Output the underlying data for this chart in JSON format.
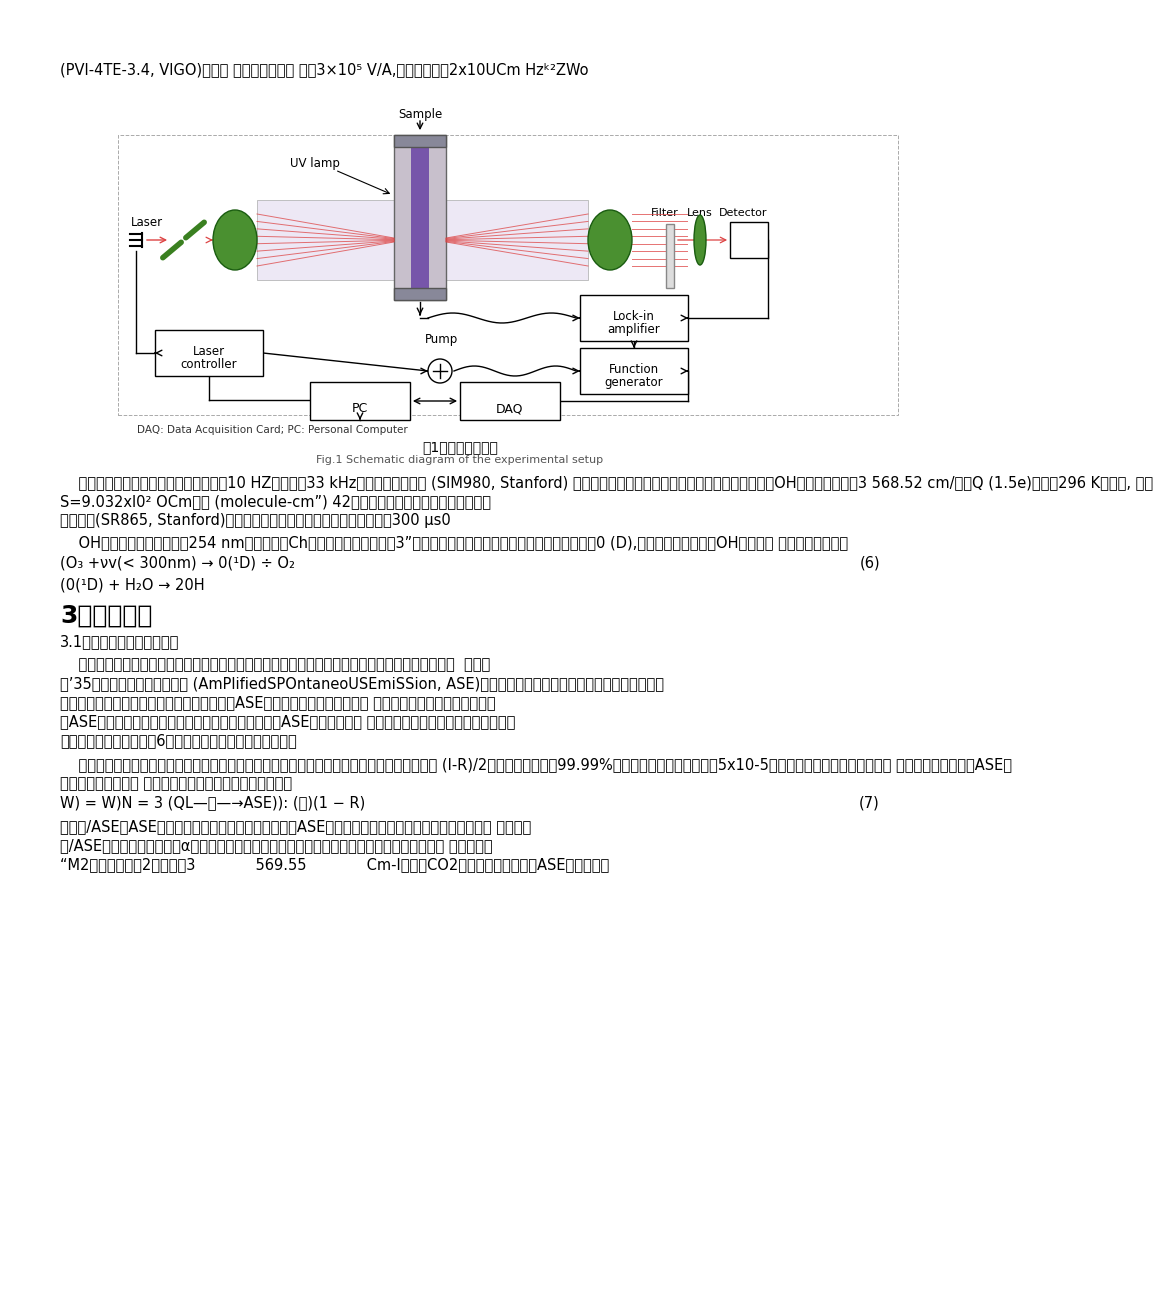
{
  "bg_color": "#ffffff",
  "line1": "(PVI-4TE-3.4, VIGO)接收， 探测器的跨阻增 益为3×10⁵ V/A,探测灵敏度为2x10UCm Hzᵏ²ZWo",
  "fig_caption_cn": "图1实验装置示意图",
  "fig_caption_en": "Fig.1 Schematic diagram of the experimental setup",
  "daq_note": "DAQ: Data Acquisition Card; PC: Personal Computer",
  "para1_lines": [
    "    使用波长调制离轴积分腔光谱探测时，10 HZ锯齿波和33 kHz正弦波通过加法器 (SIM980, Stanford) 叠加后送入激光控制器以扫描和调制激光注入电流，OH自由基选择位于3 568.52 cm/处的Q (1.5e)线（在296 K温度下, 线强",
    "S=9.032xl0² OCm＿／ (molecule-cm”) 42）。探测器接收的光强信号输入至锁",
    "相放大器(SR865, Stanford)用于解调二次谐波信号，解调的时间常数为300 μs0"
  ],
  "para2_lines": [
    "    OH自由基在谐振腔内部由254 nm紫外灯光解Ch与水汽发生反应产生［3”。腔内紫外灯开启时，会光解产生激发态氧原嬏0 (D),再与水蔽气反应产生OH自由基， 其具体化学过程为"
  ],
  "eq6a": "(O₃ +νv(< 300nm) → 0(¹D) ÷ O₂",
  "eq6_num": "(6)",
  "eq6b": "(0(¹D) + H₂O → 20H",
  "section3": "3结果与讨论",
  "section31": "3.1放大的自发辐射影响探究",
  "para3_lines": [
    "    对激光器注入电流时，工作物质在激光器内部的增益介质中获得受激放大，同时也会产生非相干的  自发辐",
    "射’35］，这种放大的自发辐射 (AmPlifiedSPOntaneoUSEmiSSion, ASE)会与有效信号互相竞争，增大激光器内部噪声。",
    "在一定条件下，一定数量的粒子被激发，产生ASE的粒子数愁多，可用于提供 信号增益的粒子数目也就愁少，",
    "即ASE会造成反转的粒子数下降，激光增益系数降低。ASE的强度会随激 光器注入电流增大而增大，甚至可达到",
    "激光发射功率的百分之几6］，光谱带宽可达几百纳米印［。"
  ],
  "para4_lines": [
    "    由于离轴积分腔中激光能量被均匀分在密集的高阶模上，最大透过光强仅为耦合到腔内光强的 (I-R)/2倍，对于反射率为99.99%的高反镜片，仅有入射光的5x10-5能够透过光腔被探测器接收。当 激光束经过光腔时，ASE部",
    "分直接透过积分腔， 与有效信号一起被探测器接收＾］，即"
  ],
  "eq7a": "W) = W)N = 3 (QL—个—→ASE)): (品)(1 − R)",
  "eq7_num": "(7)",
  "para5_lines": [
    "式中，/ASE为ASE的透过光强。当有效信号光强大小与ASE强度相当时，将会对吸收系数的测量产生影 响。若忽",
    "略/ASE，则会导致吸收系数α的低估，进而通过谱线线型反演得到的分子数浓度被低估，影响测 量的准确性",
    "“M2］。结果如图2所示，以3             569.55             Cm-I附近的CO2吸收谱线为例，研究ASE对本装置的"
  ],
  "diagram": {
    "sample_label": "Sample",
    "uv_lamp_label": "UV lamp",
    "laser_label": "Laser",
    "filter_label": "Filter",
    "lens_label": "Lens",
    "detector_label": "Detector",
    "pump_label": "Pump",
    "lockin_label1": "Lock-in",
    "lockin_label2": "amplifier",
    "func_label1": "Function",
    "func_label2": "generator",
    "laser_ctrl_label1": "Laser",
    "laser_ctrl_label2": "controller",
    "pc_label": "PC",
    "daq_label": "DAQ"
  }
}
